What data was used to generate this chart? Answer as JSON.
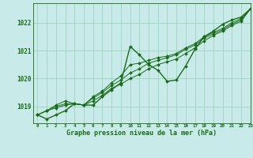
{
  "title": "Graphe pression niveau de la mer (hPa)",
  "background_color": "#c8eae8",
  "grid_color": "#99ccbb",
  "line_color": "#1a6b1a",
  "marker_color": "#1a6b1a",
  "xlim": [
    -0.5,
    23
  ],
  "ylim": [
    1018.4,
    1022.7
  ],
  "yticks": [
    1019,
    1020,
    1021,
    1022
  ],
  "xticks": [
    0,
    1,
    2,
    3,
    4,
    5,
    6,
    7,
    8,
    9,
    10,
    11,
    12,
    13,
    14,
    15,
    16,
    17,
    18,
    19,
    20,
    21,
    22,
    23
  ],
  "series1": [
    1018.7,
    1018.55,
    1018.7,
    1018.85,
    1019.1,
    1019.05,
    1019.05,
    1019.35,
    1019.6,
    1019.85,
    1021.15,
    1020.85,
    1020.5,
    1020.3,
    1019.9,
    1019.95,
    1020.45,
    1021.05,
    1021.5,
    1021.7,
    1021.95,
    1022.1,
    1022.2,
    1022.5
  ],
  "series2": [
    1018.7,
    1018.85,
    1019.05,
    1019.2,
    1019.1,
    1019.05,
    1019.35,
    1019.55,
    1019.85,
    1020.1,
    1020.5,
    1020.55,
    1020.65,
    1020.75,
    1020.8,
    1020.9,
    1021.1,
    1021.25,
    1021.5,
    1021.65,
    1021.8,
    1022.0,
    1022.15,
    1022.5
  ],
  "series3": [
    1018.7,
    1018.85,
    1019.0,
    1019.1,
    1019.1,
    1019.05,
    1019.3,
    1019.5,
    1019.75,
    1019.95,
    1020.2,
    1020.35,
    1020.55,
    1020.65,
    1020.75,
    1020.85,
    1021.05,
    1021.2,
    1021.45,
    1021.6,
    1021.75,
    1021.95,
    1022.1,
    1022.5
  ],
  "series4": [
    1018.7,
    1018.85,
    1018.95,
    1019.05,
    1019.1,
    1019.05,
    1019.2,
    1019.4,
    1019.65,
    1019.8,
    1020.0,
    1020.15,
    1020.35,
    1020.5,
    1020.6,
    1020.7,
    1020.9,
    1021.1,
    1021.35,
    1021.55,
    1021.7,
    1021.9,
    1022.05,
    1022.5
  ],
  "ylabel_fontsize": 5.5,
  "xlabel_fontsize": 6.0,
  "xtick_fontsize": 4.2,
  "title_fontsize": 6.0
}
